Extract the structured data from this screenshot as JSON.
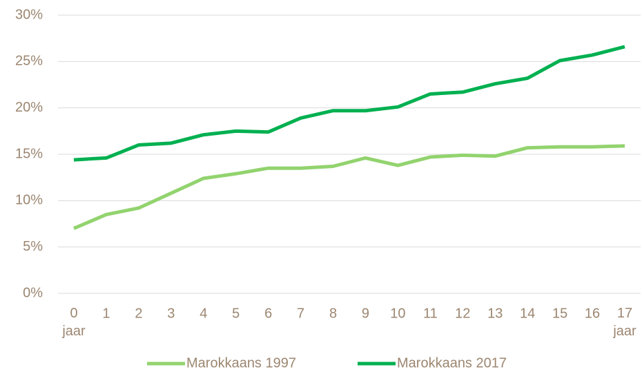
{
  "chart_data": {
    "type": "line",
    "categories": [
      "0\njaar",
      "1",
      "2",
      "3",
      "4",
      "5",
      "6",
      "7",
      "8",
      "9",
      "10",
      "11",
      "12",
      "13",
      "14",
      "15",
      "16",
      "17\njaar"
    ],
    "series": [
      {
        "name": "Marokkaans 1997",
        "color": "#92d36e",
        "values": [
          7.0,
          8.5,
          9.2,
          10.8,
          12.4,
          12.9,
          13.5,
          13.5,
          13.7,
          14.6,
          13.8,
          14.7,
          14.9,
          14.8,
          15.7,
          15.8,
          15.8,
          15.9
        ]
      },
      {
        "name": "Marokkaans 2017",
        "color": "#00b050",
        "values": [
          14.4,
          14.6,
          16.0,
          16.2,
          17.1,
          17.5,
          17.4,
          18.9,
          19.7,
          19.7,
          20.1,
          21.5,
          21.7,
          22.6,
          23.2,
          25.1,
          25.7,
          26.6
        ]
      }
    ],
    "ylim": [
      0,
      30
    ],
    "yticks": [
      {
        "value": 0,
        "label": "0%"
      },
      {
        "value": 5,
        "label": "5%"
      },
      {
        "value": 10,
        "label": "10%"
      },
      {
        "value": 15,
        "label": "15%"
      },
      {
        "value": 20,
        "label": "20%"
      },
      {
        "value": 25,
        "label": "25%"
      },
      {
        "value": 30,
        "label": "30%"
      }
    ],
    "grid": true,
    "legend": "bottom"
  }
}
